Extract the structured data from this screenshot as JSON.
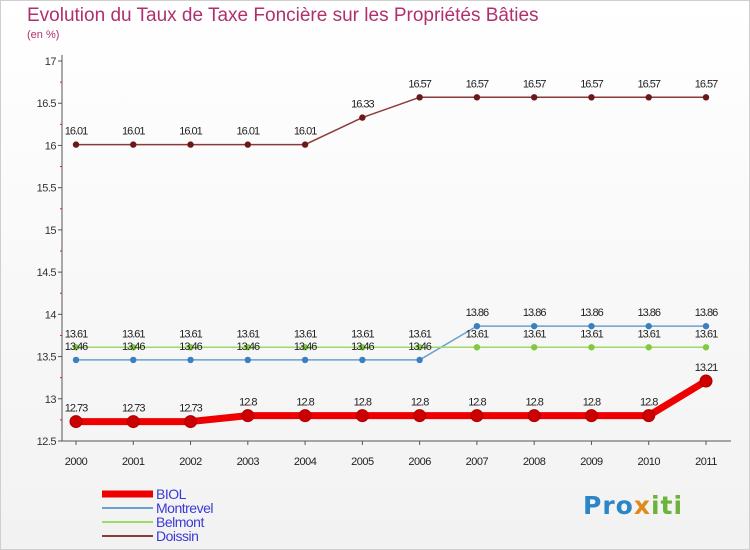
{
  "title": "Evolution du Taux de Taxe Foncière sur les Propriétés Bâties",
  "unit_label": "(en %)",
  "logo": {
    "part1": "Pro",
    "part2": "x",
    "part3": "iti"
  },
  "chart_data": {
    "type": "line",
    "title": "Evolution du Taux de Taxe Foncière sur les Propriétés Bâties",
    "ylabel": "(en %)",
    "xlabel": "",
    "x": [
      "2000",
      "2001",
      "2002",
      "2003",
      "2004",
      "2005",
      "2006",
      "2007",
      "2008",
      "2009",
      "2010",
      "2011"
    ],
    "ylim": [
      12.5,
      17
    ],
    "yticks": [
      "12.5",
      "13",
      "13.5",
      "14",
      "14.5",
      "15",
      "15.5",
      "16",
      "16.5",
      "17"
    ],
    "legend_position": "bottom-left",
    "series": [
      {
        "name": "BIOL",
        "color": "#ee0000",
        "marker": "#cc0000",
        "emphasis": true,
        "values": [
          12.73,
          12.73,
          12.73,
          12.8,
          12.8,
          12.8,
          12.8,
          12.8,
          12.8,
          12.8,
          12.8,
          13.21
        ],
        "labels": [
          "12.73",
          "12.73",
          "12.73",
          "12.8",
          "12.8",
          "12.8",
          "12.8",
          "12.8",
          "12.8",
          "12.8",
          "12.8",
          "13.21"
        ]
      },
      {
        "name": "Montrevel",
        "color": "#6aa0cf",
        "marker": "#3c7fc0",
        "emphasis": false,
        "values": [
          13.46,
          13.46,
          13.46,
          13.46,
          13.46,
          13.46,
          13.46,
          13.86,
          13.86,
          13.86,
          13.86,
          13.86
        ],
        "labels": [
          "13.46",
          "13.46",
          "13.46",
          "13.46",
          "13.46",
          "13.46",
          "13.46",
          "13.86",
          "13.86",
          "13.86",
          "13.86",
          "13.86"
        ]
      },
      {
        "name": "Belmont",
        "color": "#9fd96a",
        "marker": "#7ecb3e",
        "emphasis": false,
        "values": [
          13.61,
          13.61,
          13.61,
          13.61,
          13.61,
          13.61,
          13.61,
          13.61,
          13.61,
          13.61,
          13.61,
          13.61
        ],
        "labels": [
          "13.61",
          "13.61",
          "13.61",
          "13.61",
          "13.61",
          "13.61",
          "13.61",
          "13.61",
          "13.61",
          "13.61",
          "13.61",
          "13.61"
        ]
      },
      {
        "name": "Doissin",
        "color": "#8a3a3a",
        "marker": "#6a1818",
        "emphasis": false,
        "values": [
          16.01,
          16.01,
          16.01,
          16.01,
          16.01,
          16.33,
          16.57,
          16.57,
          16.57,
          16.57,
          16.57,
          16.57
        ],
        "labels": [
          "16.01",
          "16.01",
          "16.01",
          "16.01",
          "16.01",
          "16.33",
          "16.57",
          "16.57",
          "16.57",
          "16.57",
          "16.57",
          "16.57"
        ]
      }
    ]
  }
}
